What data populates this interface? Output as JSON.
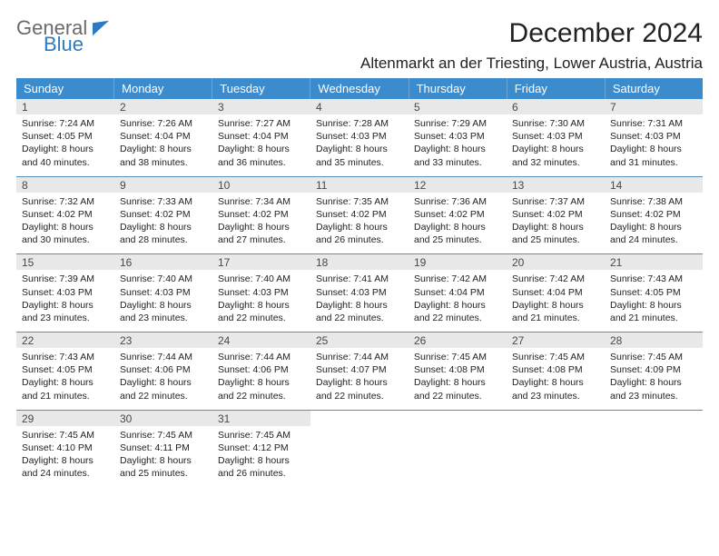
{
  "logo": {
    "word1": "General",
    "word2": "Blue"
  },
  "title": "December 2024",
  "location": "Altenmarkt an der Triesting, Lower Austria, Austria",
  "colors": {
    "header_bg": "#3b8bcd",
    "header_text": "#ffffff",
    "daynum_bg": "#e8e8e8",
    "week_border": "#5a8fb8",
    "logo_gray": "#6a6a6a",
    "logo_blue": "#2b7bc4"
  },
  "weekdays": [
    "Sunday",
    "Monday",
    "Tuesday",
    "Wednesday",
    "Thursday",
    "Friday",
    "Saturday"
  ],
  "weeks": [
    [
      {
        "n": "1",
        "sr": "Sunrise: 7:24 AM",
        "ss": "Sunset: 4:05 PM",
        "d1": "Daylight: 8 hours",
        "d2": "and 40 minutes."
      },
      {
        "n": "2",
        "sr": "Sunrise: 7:26 AM",
        "ss": "Sunset: 4:04 PM",
        "d1": "Daylight: 8 hours",
        "d2": "and 38 minutes."
      },
      {
        "n": "3",
        "sr": "Sunrise: 7:27 AM",
        "ss": "Sunset: 4:04 PM",
        "d1": "Daylight: 8 hours",
        "d2": "and 36 minutes."
      },
      {
        "n": "4",
        "sr": "Sunrise: 7:28 AM",
        "ss": "Sunset: 4:03 PM",
        "d1": "Daylight: 8 hours",
        "d2": "and 35 minutes."
      },
      {
        "n": "5",
        "sr": "Sunrise: 7:29 AM",
        "ss": "Sunset: 4:03 PM",
        "d1": "Daylight: 8 hours",
        "d2": "and 33 minutes."
      },
      {
        "n": "6",
        "sr": "Sunrise: 7:30 AM",
        "ss": "Sunset: 4:03 PM",
        "d1": "Daylight: 8 hours",
        "d2": "and 32 minutes."
      },
      {
        "n": "7",
        "sr": "Sunrise: 7:31 AM",
        "ss": "Sunset: 4:03 PM",
        "d1": "Daylight: 8 hours",
        "d2": "and 31 minutes."
      }
    ],
    [
      {
        "n": "8",
        "sr": "Sunrise: 7:32 AM",
        "ss": "Sunset: 4:02 PM",
        "d1": "Daylight: 8 hours",
        "d2": "and 30 minutes."
      },
      {
        "n": "9",
        "sr": "Sunrise: 7:33 AM",
        "ss": "Sunset: 4:02 PM",
        "d1": "Daylight: 8 hours",
        "d2": "and 28 minutes."
      },
      {
        "n": "10",
        "sr": "Sunrise: 7:34 AM",
        "ss": "Sunset: 4:02 PM",
        "d1": "Daylight: 8 hours",
        "d2": "and 27 minutes."
      },
      {
        "n": "11",
        "sr": "Sunrise: 7:35 AM",
        "ss": "Sunset: 4:02 PM",
        "d1": "Daylight: 8 hours",
        "d2": "and 26 minutes."
      },
      {
        "n": "12",
        "sr": "Sunrise: 7:36 AM",
        "ss": "Sunset: 4:02 PM",
        "d1": "Daylight: 8 hours",
        "d2": "and 25 minutes."
      },
      {
        "n": "13",
        "sr": "Sunrise: 7:37 AM",
        "ss": "Sunset: 4:02 PM",
        "d1": "Daylight: 8 hours",
        "d2": "and 25 minutes."
      },
      {
        "n": "14",
        "sr": "Sunrise: 7:38 AM",
        "ss": "Sunset: 4:02 PM",
        "d1": "Daylight: 8 hours",
        "d2": "and 24 minutes."
      }
    ],
    [
      {
        "n": "15",
        "sr": "Sunrise: 7:39 AM",
        "ss": "Sunset: 4:03 PM",
        "d1": "Daylight: 8 hours",
        "d2": "and 23 minutes."
      },
      {
        "n": "16",
        "sr": "Sunrise: 7:40 AM",
        "ss": "Sunset: 4:03 PM",
        "d1": "Daylight: 8 hours",
        "d2": "and 23 minutes."
      },
      {
        "n": "17",
        "sr": "Sunrise: 7:40 AM",
        "ss": "Sunset: 4:03 PM",
        "d1": "Daylight: 8 hours",
        "d2": "and 22 minutes."
      },
      {
        "n": "18",
        "sr": "Sunrise: 7:41 AM",
        "ss": "Sunset: 4:03 PM",
        "d1": "Daylight: 8 hours",
        "d2": "and 22 minutes."
      },
      {
        "n": "19",
        "sr": "Sunrise: 7:42 AM",
        "ss": "Sunset: 4:04 PM",
        "d1": "Daylight: 8 hours",
        "d2": "and 22 minutes."
      },
      {
        "n": "20",
        "sr": "Sunrise: 7:42 AM",
        "ss": "Sunset: 4:04 PM",
        "d1": "Daylight: 8 hours",
        "d2": "and 21 minutes."
      },
      {
        "n": "21",
        "sr": "Sunrise: 7:43 AM",
        "ss": "Sunset: 4:05 PM",
        "d1": "Daylight: 8 hours",
        "d2": "and 21 minutes."
      }
    ],
    [
      {
        "n": "22",
        "sr": "Sunrise: 7:43 AM",
        "ss": "Sunset: 4:05 PM",
        "d1": "Daylight: 8 hours",
        "d2": "and 21 minutes."
      },
      {
        "n": "23",
        "sr": "Sunrise: 7:44 AM",
        "ss": "Sunset: 4:06 PM",
        "d1": "Daylight: 8 hours",
        "d2": "and 22 minutes."
      },
      {
        "n": "24",
        "sr": "Sunrise: 7:44 AM",
        "ss": "Sunset: 4:06 PM",
        "d1": "Daylight: 8 hours",
        "d2": "and 22 minutes."
      },
      {
        "n": "25",
        "sr": "Sunrise: 7:44 AM",
        "ss": "Sunset: 4:07 PM",
        "d1": "Daylight: 8 hours",
        "d2": "and 22 minutes."
      },
      {
        "n": "26",
        "sr": "Sunrise: 7:45 AM",
        "ss": "Sunset: 4:08 PM",
        "d1": "Daylight: 8 hours",
        "d2": "and 22 minutes."
      },
      {
        "n": "27",
        "sr": "Sunrise: 7:45 AM",
        "ss": "Sunset: 4:08 PM",
        "d1": "Daylight: 8 hours",
        "d2": "and 23 minutes."
      },
      {
        "n": "28",
        "sr": "Sunrise: 7:45 AM",
        "ss": "Sunset: 4:09 PM",
        "d1": "Daylight: 8 hours",
        "d2": "and 23 minutes."
      }
    ],
    [
      {
        "n": "29",
        "sr": "Sunrise: 7:45 AM",
        "ss": "Sunset: 4:10 PM",
        "d1": "Daylight: 8 hours",
        "d2": "and 24 minutes."
      },
      {
        "n": "30",
        "sr": "Sunrise: 7:45 AM",
        "ss": "Sunset: 4:11 PM",
        "d1": "Daylight: 8 hours",
        "d2": "and 25 minutes."
      },
      {
        "n": "31",
        "sr": "Sunrise: 7:45 AM",
        "ss": "Sunset: 4:12 PM",
        "d1": "Daylight: 8 hours",
        "d2": "and 26 minutes."
      },
      {
        "blank": true
      },
      {
        "blank": true
      },
      {
        "blank": true
      },
      {
        "blank": true
      }
    ]
  ]
}
